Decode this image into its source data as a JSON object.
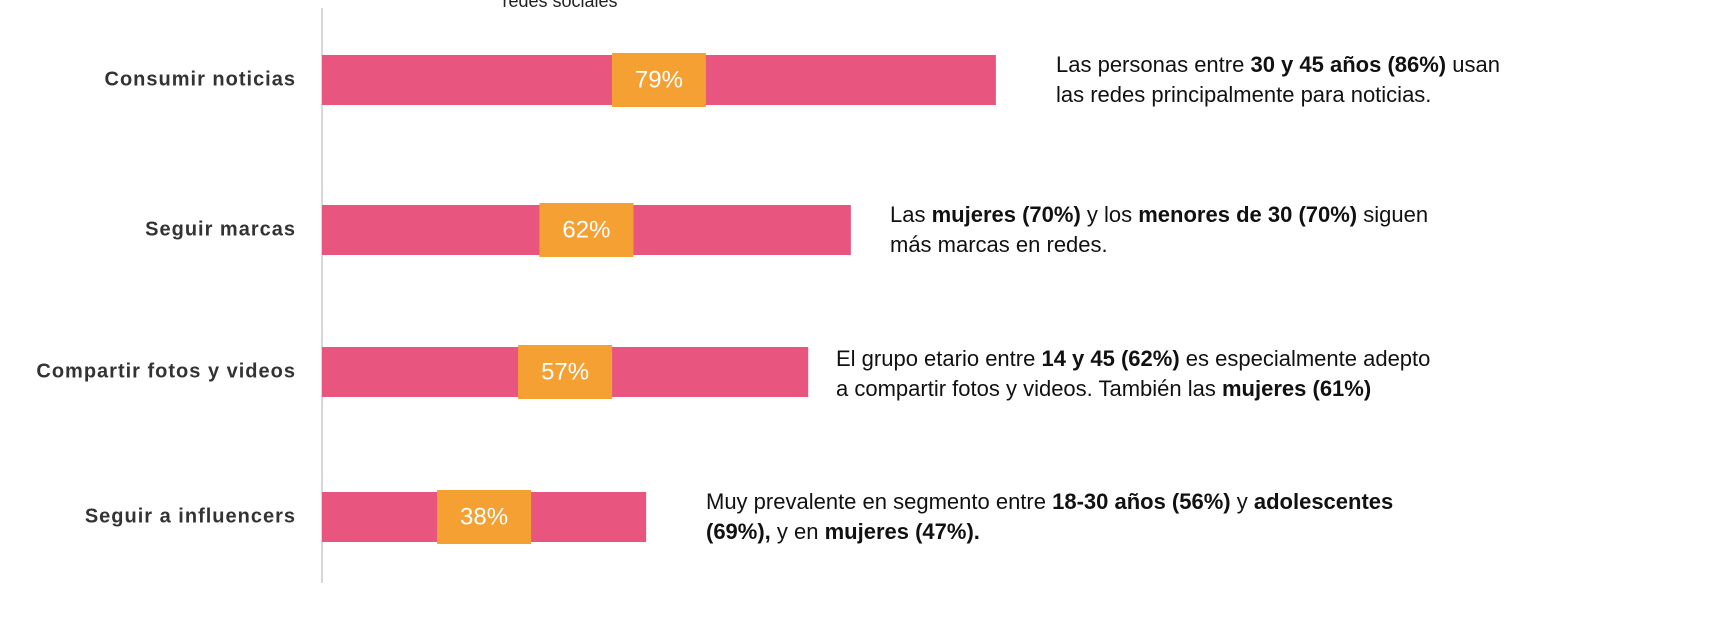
{
  "chart_data": {
    "type": "bar",
    "orientation": "horizontal",
    "title": "redes sociales",
    "categories": [
      "Consumir noticias",
      "Seguir marcas",
      "Compartir fotos y videos",
      "Seguir a influencers"
    ],
    "values": [
      79,
      62,
      57,
      38
    ],
    "value_labels": [
      "79%",
      "62%",
      "57%",
      "38%"
    ],
    "color": "#e8567f",
    "label_color": "#f5a033",
    "xlim": [
      0,
      100
    ],
    "annotations": [
      {
        "lines": [
          [
            {
              "text": "Las personas entre ",
              "bold": false
            },
            {
              "text": "30 y 45 años (86%)",
              "bold": true
            },
            {
              "text": " usan",
              "bold": false
            }
          ],
          [
            {
              "text": "las redes principalmente para noticias.",
              "bold": false
            }
          ]
        ]
      },
      {
        "lines": [
          [
            {
              "text": "Las ",
              "bold": false
            },
            {
              "text": "mujeres (70%)",
              "bold": true
            },
            {
              "text": " y los ",
              "bold": false
            },
            {
              "text": "menores de 30 (70%)",
              "bold": true
            },
            {
              "text": " siguen",
              "bold": false
            }
          ],
          [
            {
              "text": "más marcas en redes.",
              "bold": false
            }
          ]
        ]
      },
      {
        "lines": [
          [
            {
              "text": "El grupo etario entre ",
              "bold": false
            },
            {
              "text": "14 y 45 (62%)",
              "bold": true
            },
            {
              "text": " es especialmente adepto",
              "bold": false
            }
          ],
          [
            {
              "text": "a compartir fotos y videos. También las ",
              "bold": false
            },
            {
              "text": "mujeres (61%)",
              "bold": true
            }
          ]
        ]
      },
      {
        "lines": [
          [
            {
              "text": "Muy prevalente en segmento entre ",
              "bold": false
            },
            {
              "text": "18-30 años (56%)",
              "bold": true
            },
            {
              "text": " y ",
              "bold": false
            },
            {
              "text": "adolescentes",
              "bold": true
            }
          ],
          [
            {
              "text": "(69%),",
              "bold": true
            },
            {
              "text": " y en ",
              "bold": false
            },
            {
              "text": "mujeres (47%).",
              "bold": true
            }
          ]
        ]
      }
    ]
  }
}
